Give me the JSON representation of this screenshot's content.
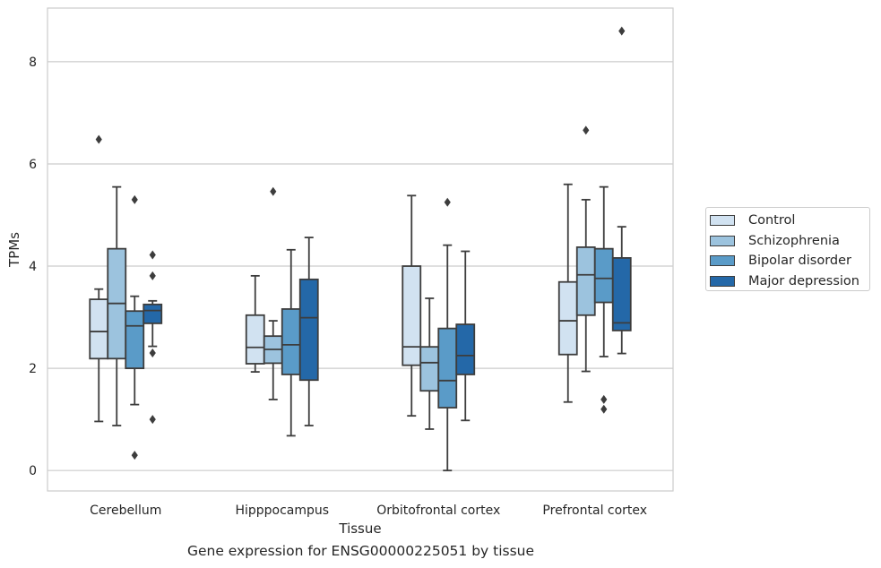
{
  "chart_data": {
    "type": "box",
    "caption": "Gene expression for ENSG00000225051 by tissue",
    "xlabel": "Tissue",
    "ylabel": "TPMs",
    "ylim": [
      -0.4,
      9.05
    ],
    "yticks": [
      0,
      2,
      4,
      6,
      8
    ],
    "grid": "horizontal",
    "legend_position": "right",
    "categories": [
      "Cerebellum",
      "Hipppocampus",
      "Orbitofrontal cortex",
      "Prefrontal cortex"
    ],
    "series": [
      {
        "name": "Control",
        "color": "#d1e2f1",
        "boxes": [
          {
            "whisker_low": 0.96,
            "q1": 2.19,
            "median": 2.72,
            "q3": 3.35,
            "whisker_high": 3.55,
            "outliers": [
              6.48
            ]
          },
          {
            "whisker_low": 1.93,
            "q1": 2.09,
            "median": 2.41,
            "q3": 3.04,
            "whisker_high": 3.81,
            "outliers": []
          },
          {
            "whisker_low": 1.07,
            "q1": 2.06,
            "median": 2.42,
            "q3": 4.0,
            "whisker_high": 5.38,
            "outliers": []
          },
          {
            "whisker_low": 1.34,
            "q1": 2.27,
            "median": 2.93,
            "q3": 3.69,
            "whisker_high": 5.6,
            "outliers": []
          }
        ]
      },
      {
        "name": "Schizophrenia",
        "color": "#9cc3de",
        "boxes": [
          {
            "whisker_low": 0.88,
            "q1": 2.19,
            "median": 3.27,
            "q3": 4.34,
            "whisker_high": 5.55,
            "outliers": []
          },
          {
            "whisker_low": 1.39,
            "q1": 2.1,
            "median": 2.37,
            "q3": 2.63,
            "whisker_high": 2.93,
            "outliers": [
              5.46
            ]
          },
          {
            "whisker_low": 0.81,
            "q1": 1.56,
            "median": 2.11,
            "q3": 2.42,
            "whisker_high": 3.37,
            "outliers": []
          },
          {
            "whisker_low": 1.94,
            "q1": 3.04,
            "median": 3.83,
            "q3": 4.37,
            "whisker_high": 5.3,
            "outliers": [
              6.66
            ]
          }
        ]
      },
      {
        "name": "Bipolar disorder",
        "color": "#5a9bc8",
        "boxes": [
          {
            "whisker_low": 1.29,
            "q1": 2.0,
            "median": 2.83,
            "q3": 3.12,
            "whisker_high": 3.41,
            "outliers": [
              0.3,
              5.3
            ]
          },
          {
            "whisker_low": 0.68,
            "q1": 1.88,
            "median": 2.46,
            "q3": 3.16,
            "whisker_high": 4.32,
            "outliers": []
          },
          {
            "whisker_low": 0.0,
            "q1": 1.23,
            "median": 1.76,
            "q3": 2.78,
            "whisker_high": 4.41,
            "outliers": [
              5.25
            ]
          },
          {
            "whisker_low": 2.23,
            "q1": 3.29,
            "median": 3.76,
            "q3": 4.34,
            "whisker_high": 5.55,
            "outliers": [
              1.2,
              1.39
            ]
          }
        ]
      },
      {
        "name": "Major depression",
        "color": "#2468a8",
        "boxes": [
          {
            "whisker_low": 2.43,
            "q1": 2.88,
            "median": 3.13,
            "q3": 3.25,
            "whisker_high": 3.32,
            "outliers": [
              1.0,
              2.3,
              3.81,
              4.22
            ]
          },
          {
            "whisker_low": 0.88,
            "q1": 1.77,
            "median": 2.99,
            "q3": 3.74,
            "whisker_high": 4.56,
            "outliers": []
          },
          {
            "whisker_low": 0.98,
            "q1": 1.88,
            "median": 2.25,
            "q3": 2.86,
            "whisker_high": 4.29,
            "outliers": []
          },
          {
            "whisker_low": 2.29,
            "q1": 2.74,
            "median": 2.89,
            "q3": 4.16,
            "whisker_high": 4.77,
            "outliers": [
              8.6
            ]
          }
        ]
      }
    ]
  }
}
